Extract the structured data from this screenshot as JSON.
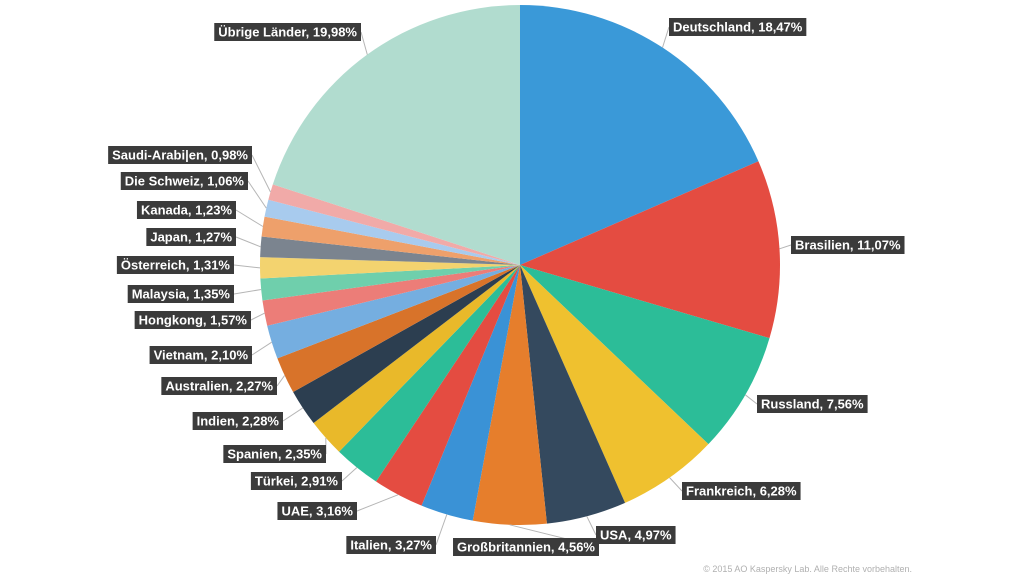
{
  "chart_data": {
    "type": "pie",
    "title": "",
    "start_angle_deg": 0,
    "direction": "clockwise",
    "series": [
      {
        "label": "Deutschland, 18,47%",
        "value": 18.47,
        "color": "#3a99d8"
      },
      {
        "label": "Brasilien, 11,07%",
        "value": 11.07,
        "color": "#e44c41"
      },
      {
        "label": "Russland, 7,56%",
        "value": 7.56,
        "color": "#2cbd98"
      },
      {
        "label": "Frankreich, 6,28%",
        "value": 6.28,
        "color": "#efc12f"
      },
      {
        "label": "USA, 4,97%",
        "value": 4.97,
        "color": "#34495e"
      },
      {
        "label": "Großbritannien, 4,56%",
        "value": 4.56,
        "color": "#e67e2c"
      },
      {
        "label": "Italien, 3,27%",
        "value": 3.27,
        "color": "#3a92d6"
      },
      {
        "label": "UAE, 3,16%",
        "value": 3.16,
        "color": "#e44c41"
      },
      {
        "label": "Türkei, 2,91%",
        "value": 2.91,
        "color": "#2cbd98"
      },
      {
        "label": "Spanien, 2,35%",
        "value": 2.35,
        "color": "#e9b92a"
      },
      {
        "label": "Indien, 2,28%",
        "value": 2.28,
        "color": "#2c3e50"
      },
      {
        "label": "Australien, 2,27%",
        "value": 2.27,
        "color": "#d8732a"
      },
      {
        "label": "Vietnam, 2,10%",
        "value": 2.1,
        "color": "#75aee0"
      },
      {
        "label": "Hongkong, 1,57%",
        "value": 1.57,
        "color": "#ec7d78"
      },
      {
        "label": "Malaysia, 1,35%",
        "value": 1.35,
        "color": "#6fcfac"
      },
      {
        "label": "Österreich, 1,31%",
        "value": 1.31,
        "color": "#f3d36f"
      },
      {
        "label": "Japan, 1,27%",
        "value": 1.27,
        "color": "#7b848f"
      },
      {
        "label": "Kanada, 1,23%",
        "value": 1.23,
        "color": "#eea06b"
      },
      {
        "label": "Die Schweiz, 1,06%",
        "value": 1.06,
        "color": "#a8cbee"
      },
      {
        "label": "Saudi-Arabi|en, 0,98%",
        "value": 0.98,
        "color": "#f1aaa8"
      },
      {
        "label": "Übrige Länder, 19,98%",
        "value": 19.98,
        "color": "#b1dccf"
      }
    ]
  },
  "footer": {
    "copyright": "© 2015 AO Kaspersky Lab. Alle Rechte vorbehalten."
  }
}
